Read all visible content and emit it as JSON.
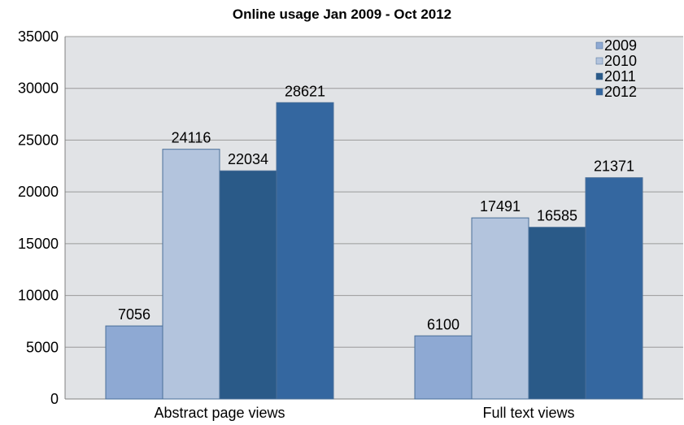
{
  "chart_data": {
    "type": "bar",
    "title": "Online usage Jan 2009 - Oct 2012",
    "xlabel": "",
    "ylabel": "",
    "categories": [
      "Abstract page views",
      "Full text views"
    ],
    "series": [
      {
        "name": "2009",
        "color": "#8ea9d3",
        "values": [
          7056,
          6100
        ]
      },
      {
        "name": "2010",
        "color": "#b3c4dd",
        "values": [
          24116,
          17491
        ]
      },
      {
        "name": "2011",
        "color": "#2a5a88",
        "values": [
          22034,
          16585
        ]
      },
      {
        "name": "2012",
        "color": "#3467a0",
        "values": [
          28621,
          21371
        ]
      }
    ],
    "ylim": [
      0,
      35000
    ],
    "yticks": [
      "0",
      "5000",
      "10000",
      "15000",
      "20000",
      "25000",
      "30000",
      "35000"
    ],
    "grid": true,
    "legend_position": "top-right",
    "plot_background": "#e1e3e6"
  }
}
